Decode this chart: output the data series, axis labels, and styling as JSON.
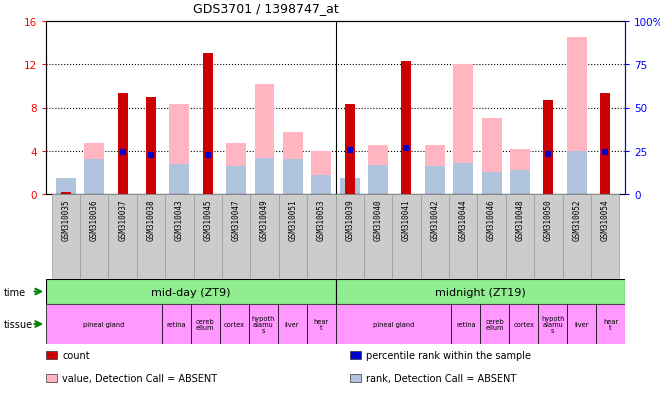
{
  "title": "GDS3701 / 1398747_at",
  "samples": [
    "GSM310035",
    "GSM310036",
    "GSM310037",
    "GSM310038",
    "GSM310043",
    "GSM310045",
    "GSM310047",
    "GSM310049",
    "GSM310051",
    "GSM310053",
    "GSM310039",
    "GSM310040",
    "GSM310041",
    "GSM310042",
    "GSM310044",
    "GSM310046",
    "GSM310048",
    "GSM310050",
    "GSM310052",
    "GSM310054"
  ],
  "count": [
    0.15,
    0,
    9.3,
    9.0,
    0,
    13.0,
    0,
    0,
    0,
    0,
    8.3,
    0,
    12.3,
    0,
    0,
    0,
    0,
    8.7,
    0,
    9.3
  ],
  "percentile_rank": [
    null,
    null,
    3.9,
    3.6,
    null,
    3.6,
    null,
    null,
    null,
    null,
    4.1,
    null,
    4.3,
    null,
    null,
    null,
    null,
    3.7,
    null,
    3.9
  ],
  "value_absent": [
    0.3,
    4.7,
    0,
    0,
    8.3,
    0,
    4.7,
    10.2,
    5.7,
    4.0,
    0,
    4.5,
    0,
    4.5,
    12.0,
    7.0,
    4.2,
    0,
    14.5,
    0
  ],
  "rank_absent": [
    1.5,
    3.2,
    0,
    0,
    2.8,
    0,
    2.6,
    3.3,
    3.2,
    1.8,
    1.5,
    2.7,
    0,
    2.6,
    2.9,
    2.0,
    2.2,
    0,
    4.0,
    0
  ],
  "ylim_left": [
    0,
    16
  ],
  "ylim_right": [
    0,
    100
  ],
  "yticks_left": [
    0,
    4,
    8,
    12,
    16
  ],
  "yticks_right": [
    0,
    25,
    50,
    75,
    100
  ],
  "ytick_labels_right": [
    "0",
    "25",
    "50",
    "75",
    "100%"
  ],
  "tissue_groups": [
    {
      "label": "pineal gland",
      "start": 0,
      "end": 4
    },
    {
      "label": "retina",
      "start": 4,
      "end": 5
    },
    {
      "label": "cereb\nellum",
      "start": 5,
      "end": 6
    },
    {
      "label": "cortex",
      "start": 6,
      "end": 7
    },
    {
      "label": "hypoth\nalamu\ns",
      "start": 7,
      "end": 8
    },
    {
      "label": "liver",
      "start": 8,
      "end": 9
    },
    {
      "label": "hear\nt",
      "start": 9,
      "end": 10
    },
    {
      "label": "pineal gland",
      "start": 10,
      "end": 14
    },
    {
      "label": "retina",
      "start": 14,
      "end": 15
    },
    {
      "label": "cereb\nellum",
      "start": 15,
      "end": 16
    },
    {
      "label": "cortex",
      "start": 16,
      "end": 17
    },
    {
      "label": "hypoth\nalamu\ns",
      "start": 17,
      "end": 18
    },
    {
      "label": "liver",
      "start": 18,
      "end": 19
    },
    {
      "label": "hear\nt",
      "start": 19,
      "end": 20
    }
  ],
  "count_color": "#CC0000",
  "value_absent_color": "#FFB6C1",
  "rank_absent_color": "#B0C4DE",
  "percentile_color": "#0000CC",
  "time_color": "#90EE90",
  "tissue_color": "#FF99FF",
  "label_bg_color": "#CCCCCC",
  "bg_color": "#FFFFFF",
  "legend_items": [
    {
      "label": "count",
      "color": "#CC0000"
    },
    {
      "label": "percentile rank within the sample",
      "color": "#0000CC"
    },
    {
      "label": "value, Detection Call = ABSENT",
      "color": "#FFB6C1"
    },
    {
      "label": "rank, Detection Call = ABSENT",
      "color": "#B0C4DE"
    }
  ]
}
